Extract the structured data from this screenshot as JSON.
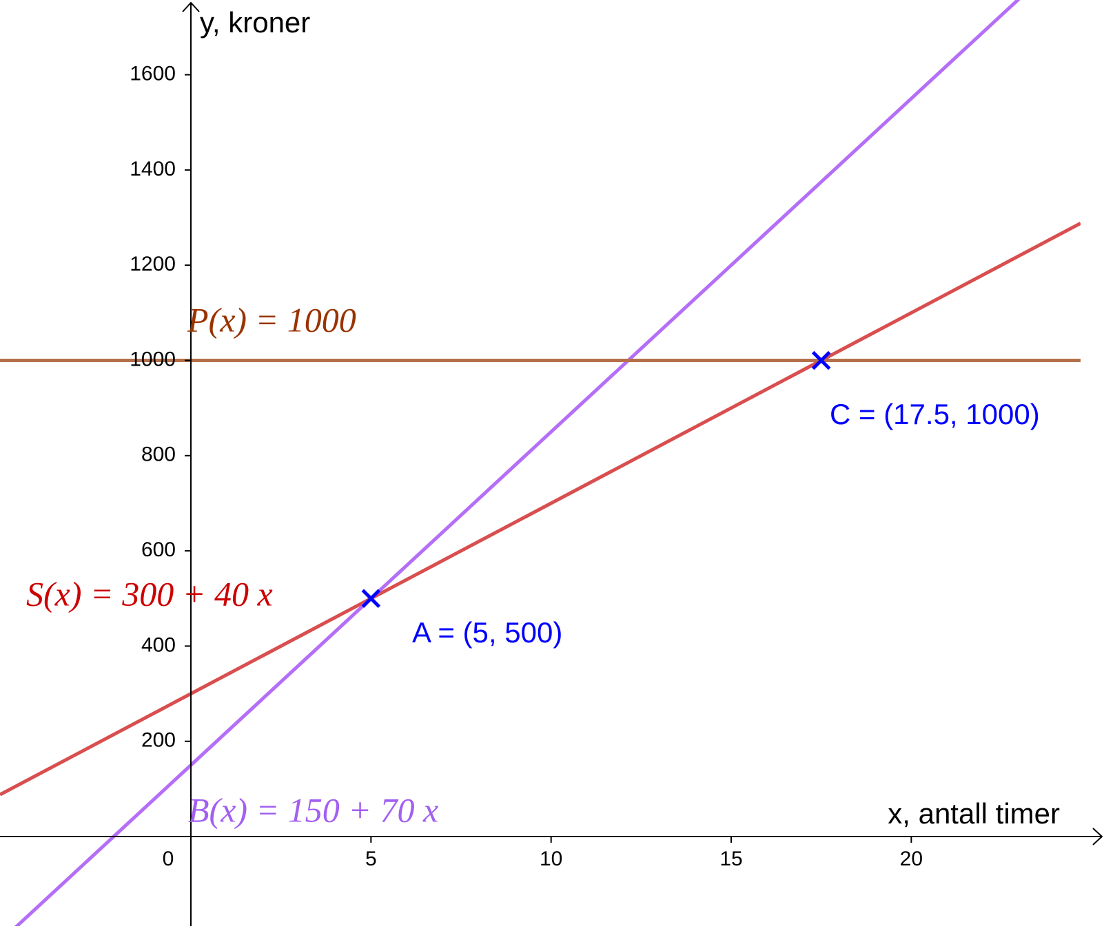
{
  "chart_data": {
    "type": "function-lines",
    "xlabel": "x, antall timer",
    "ylabel": "y, kroner",
    "xlim": [
      -5.3,
      24.7
    ],
    "ylim": [
      -188,
      1757
    ],
    "xticks": [
      0,
      5,
      10,
      15,
      20
    ],
    "yticks": [
      200,
      400,
      600,
      800,
      1000,
      1200,
      1400,
      1600
    ],
    "series": [
      {
        "name": "S(x) = 300 + 40 x",
        "intercept": 300,
        "slope": 40,
        "color": "#d94e4e",
        "label_color": "#cc0000"
      },
      {
        "name": "B(x) = 150 + 70 x",
        "intercept": 150,
        "slope": 70,
        "color": "#b46ef7",
        "label_color": "#a25ff0"
      },
      {
        "name": "P(x) = 1000",
        "intercept": 1000,
        "slope": 0,
        "color": "#b5704a",
        "label_color": "#993300"
      }
    ],
    "points": [
      {
        "label": "A = (5, 500)",
        "x": 5,
        "y": 500
      },
      {
        "label": "C = (17.5, 1000)",
        "x": 17.5,
        "y": 1000
      }
    ],
    "point_color": "#0000ff"
  }
}
